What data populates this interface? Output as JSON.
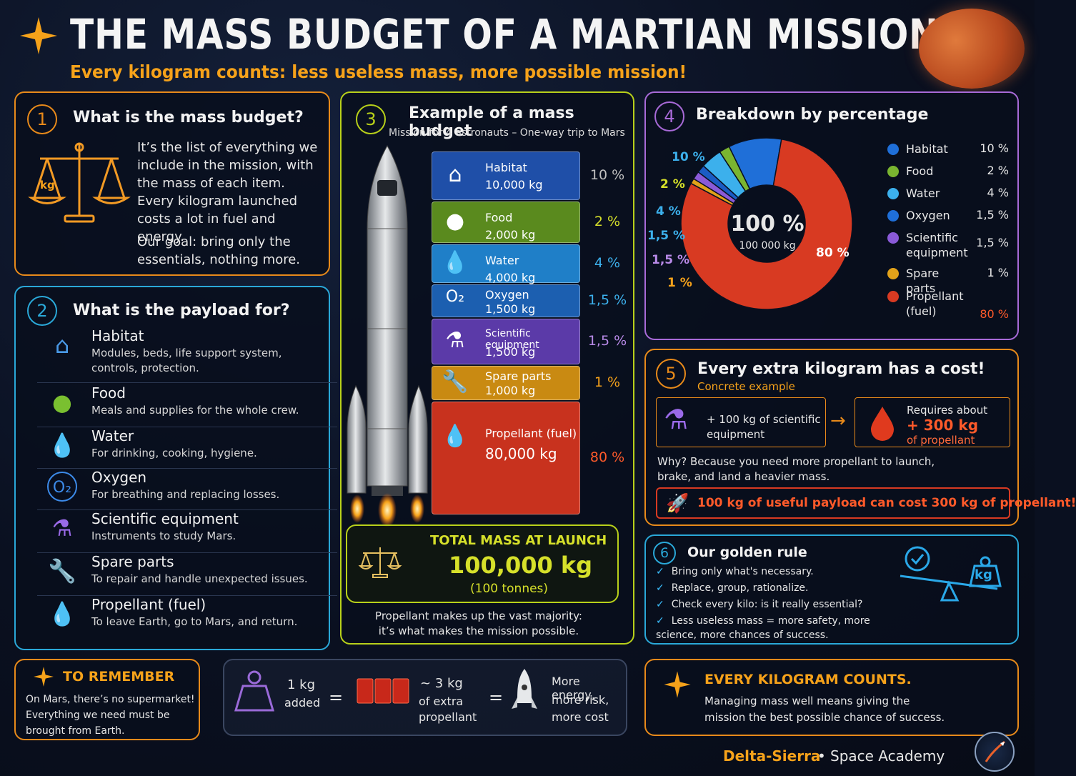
{
  "header": {
    "title": "THE MASS BUDGET OF A MARTIAN MISSION",
    "subtitle": "Every kilogram counts: less useless mass, more possible mission!"
  },
  "p1": {
    "num": "1",
    "title": "What is the mass budget?",
    "text": "It’s the list of everything we include in the mission, with the mass of each item. Every kilogram launched costs a lot in fuel and energy.",
    "goal": "Our goal: bring only the essentials, nothing more.",
    "scale_label": "kg"
  },
  "p2": {
    "num": "2",
    "title": "What is the payload for?",
    "items": [
      {
        "name": "Habitat",
        "desc": "Modules, beds, life support system, controls, protection."
      },
      {
        "name": "Food",
        "desc": "Meals and supplies for the whole crew."
      },
      {
        "name": "Water",
        "desc": "For drinking, cooking, hygiene."
      },
      {
        "name": "Oxygen",
        "desc": "For breathing and replacing losses."
      },
      {
        "name": "Scientific equipment",
        "desc": "Instruments to study Mars."
      },
      {
        "name": "Spare parts",
        "desc": "To repair and handle unexpected issues."
      },
      {
        "name": "Propellant (fuel)",
        "desc": "To leave Earth, go to Mars, and return."
      }
    ]
  },
  "p3": {
    "num": "3",
    "title": "Example of a mass budget",
    "subtitle": "Mission for 4 astronauts – One-way trip to Mars",
    "bars": [
      {
        "name": "Habitat",
        "mass": "10,000 kg",
        "pct": "10 %",
        "color": "#1f4fa8"
      },
      {
        "name": "Food",
        "mass": "2,000 kg",
        "pct": "2 %",
        "color": "#5a8a1e"
      },
      {
        "name": "Water",
        "mass": "4,000 kg",
        "pct": "4 %",
        "color": "#1f7fc8"
      },
      {
        "name": "Oxygen",
        "mass": "1,500 kg",
        "pct": "1,5 %",
        "color": "#1c5fb0"
      },
      {
        "name": "Scientific equipment",
        "mass": "1,500 kg",
        "pct": "1,5 %",
        "color": "#5b3aa8"
      },
      {
        "name": "Spare parts",
        "mass": "1,000 kg",
        "pct": "1 %",
        "color": "#c98a12"
      },
      {
        "name": "Propellant (fuel)",
        "mass": "80,000 kg",
        "pct": "80 %",
        "color": "#c8321e"
      }
    ],
    "total_label": "TOTAL MASS AT LAUNCH",
    "total_value": "100,000 kg",
    "total_sub": "(100 tonnes)",
    "note": "Propellant makes up the vast majority: it’s what makes the mission possible."
  },
  "p4": {
    "num": "4",
    "title": "Breakdown by percentage",
    "center_pct": "100 %",
    "center_kg": "100 000 kg",
    "slice_labels": [
      "10 %",
      "2 %",
      "4 %",
      "1,5 %",
      "1,5 %",
      "1 %",
      "80 %"
    ],
    "legend": [
      {
        "name": "Habitat",
        "pct": "10 %",
        "color": "#1f6fd8"
      },
      {
        "name": "Food",
        "pct": "2 %",
        "color": "#7ab530"
      },
      {
        "name": "Water",
        "pct": "4 %",
        "color": "#3cb0ec"
      },
      {
        "name": "Oxygen",
        "pct": "1,5 %",
        "color": "#1f6fd8"
      },
      {
        "name": "Scientific equipment",
        "pct": "1,5 %",
        "color": "#8a5ad8"
      },
      {
        "name": "Spare parts",
        "pct": "1 %",
        "color": "#e2a21a"
      },
      {
        "name": "Propellant (fuel)",
        "pct": "80 %",
        "color": "#d83a22"
      }
    ]
  },
  "chart_data": {
    "type": "pie",
    "categories": [
      "Habitat",
      "Food",
      "Water",
      "Oxygen",
      "Scientific equipment",
      "Spare parts",
      "Propellant (fuel)"
    ],
    "values": [
      10,
      2,
      4,
      1.5,
      1.5,
      1,
      80
    ],
    "colors": [
      "#1f6fd8",
      "#7ab530",
      "#3cb0ec",
      "#1a5cc4",
      "#8a5ad8",
      "#e2a21a",
      "#d83a22"
    ]
  },
  "p5": {
    "num": "5",
    "title": "Every extra kilogram has a cost!",
    "subtitle": "Concrete example",
    "left_text": "+ 100 kg of scientific equipment",
    "right_top": "Requires about",
    "right_value": "+ 300 kg",
    "right_bottom": "of propellant",
    "why": "Why? Because you need more propellant to launch, brake, and land a heavier mass.",
    "banner": "100 kg of useful payload can cost 300 kg of propellant!"
  },
  "p6": {
    "num": "6",
    "title": "Our golden rule",
    "checks": [
      "Bring only what's necessary.",
      "Replace, group, rationalize.",
      "Check every kilo: is it really essential?",
      "Less useless mass = more safety, more science, more chances of success."
    ],
    "kg": "kg"
  },
  "remember": {
    "title": "TO REMEMBER",
    "text": "On Mars, there’s no supermarket! Everything we need must be brought from Earth."
  },
  "equation": {
    "a1": "1 kg",
    "a2": "added",
    "eq": "=",
    "b1": "~ 3 kg",
    "b2": "of extra",
    "b3": "propellant",
    "c1": "More energy,",
    "c2": "more risk,",
    "c3": "more cost"
  },
  "counts": {
    "title": "EVERY KILOGRAM COUNTS.",
    "text": "Managing mass well means giving the mission the best possible chance of success."
  },
  "footer": {
    "brand": "Delta-Sierra",
    "dot": "•",
    "academy": "Space Academy"
  }
}
